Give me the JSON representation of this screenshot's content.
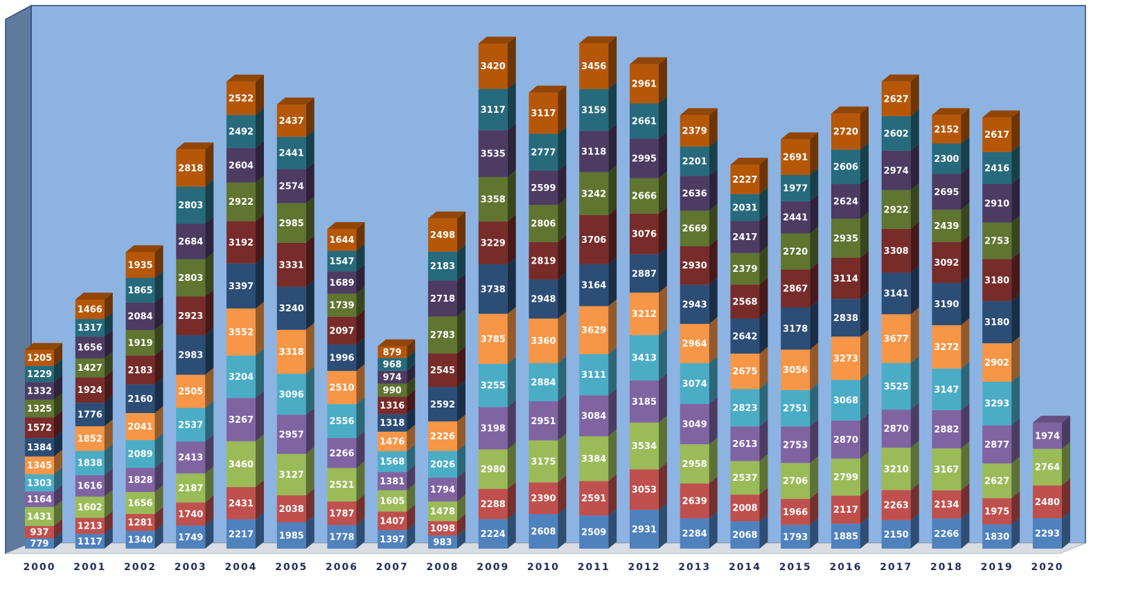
{
  "chart_data": {
    "type": "bar",
    "stacked": true,
    "categories": [
      "2000",
      "2001",
      "2002",
      "2003",
      "2004",
      "2005",
      "2006",
      "2007",
      "2008",
      "2009",
      "2010",
      "2011",
      "2012",
      "2013",
      "2014",
      "2015",
      "2016",
      "2017",
      "2018",
      "2019",
      "2020"
    ],
    "ylim": [
      0,
      41000
    ],
    "series": [
      {
        "color": "#4f81bd",
        "values": [
          779,
          1117,
          1340,
          1749,
          2217,
          1985,
          1778,
          1397,
          983,
          2224,
          2608,
          2509,
          2931,
          2284,
          2068,
          1793,
          1885,
          2150,
          2266,
          1830,
          2293
        ]
      },
      {
        "color": "#c0504d",
        "values": [
          937,
          1213,
          1281,
          1740,
          2431,
          2038,
          1787,
          1407,
          1098,
          2288,
          2390,
          2591,
          3053,
          2639,
          2008,
          1966,
          2117,
          2263,
          2134,
          1975,
          2480
        ]
      },
      {
        "color": "#9bbb59",
        "values": [
          1431,
          1602,
          1656,
          2187,
          3460,
          3127,
          2521,
          1605,
          1478,
          2980,
          3175,
          3384,
          3534,
          2958,
          2537,
          2706,
          2799,
          3210,
          3167,
          2627,
          2764
        ]
      },
      {
        "color": "#8064a2",
        "values": [
          1164,
          1616,
          1828,
          2413,
          3267,
          2957,
          2266,
          1381,
          1794,
          3198,
          2951,
          3084,
          3185,
          3049,
          2613,
          2753,
          2870,
          2870,
          2882,
          2877,
          1974
        ]
      },
      {
        "color": "#4bacc6",
        "values": [
          1303,
          1838,
          2089,
          2537,
          3204,
          3096,
          2556,
          1568,
          2026,
          3255,
          2884,
          3111,
          3413,
          3074,
          2823,
          2751,
          3068,
          3525,
          3147,
          3293,
          null
        ]
      },
      {
        "color": "#f79646",
        "values": [
          1345,
          1852,
          2041,
          2505,
          3552,
          3318,
          2510,
          1476,
          2226,
          3785,
          3360,
          3629,
          3212,
          2964,
          2675,
          3056,
          3273,
          3677,
          3272,
          2902,
          null
        ]
      },
      {
        "color": "#2c4d75",
        "values": [
          1384,
          1776,
          2160,
          2983,
          3397,
          3240,
          1996,
          1318,
          2592,
          3738,
          2948,
          3164,
          2887,
          2943,
          2642,
          3178,
          2838,
          3141,
          3190,
          3180,
          null
        ]
      },
      {
        "color": "#772c2a",
        "values": [
          1572,
          1924,
          2183,
          2923,
          3192,
          3331,
          2097,
          1316,
          2545,
          3229,
          2819,
          3706,
          3076,
          2930,
          2568,
          2867,
          3114,
          3308,
          3092,
          3180,
          null
        ]
      },
      {
        "color": "#5f7530",
        "values": [
          1325,
          1427,
          1919,
          2803,
          2922,
          2985,
          1739,
          990,
          2783,
          3358,
          2806,
          3242,
          2666,
          2669,
          2379,
          2720,
          2935,
          2922,
          2439,
          2753,
          null
        ]
      },
      {
        "color": "#4d3b62",
        "values": [
          1332,
          1656,
          2084,
          2684,
          2604,
          2574,
          1689,
          974,
          2718,
          3535,
          2599,
          3118,
          2995,
          2636,
          2417,
          2441,
          2624,
          2974,
          2695,
          2910,
          null
        ]
      },
      {
        "color": "#276a7c",
        "values": [
          1229,
          1317,
          1865,
          2803,
          2492,
          2441,
          1547,
          968,
          2183,
          3117,
          2777,
          3159,
          2661,
          2201,
          2031,
          1977,
          2606,
          2602,
          2300,
          2416,
          null
        ]
      },
      {
        "color": "#b65708",
        "values": [
          1205,
          1466,
          1935,
          2818,
          2522,
          2437,
          1644,
          879,
          2498,
          3420,
          3117,
          3456,
          2961,
          2379,
          2227,
          2691,
          2720,
          2627,
          2152,
          2617,
          null
        ]
      }
    ]
  }
}
